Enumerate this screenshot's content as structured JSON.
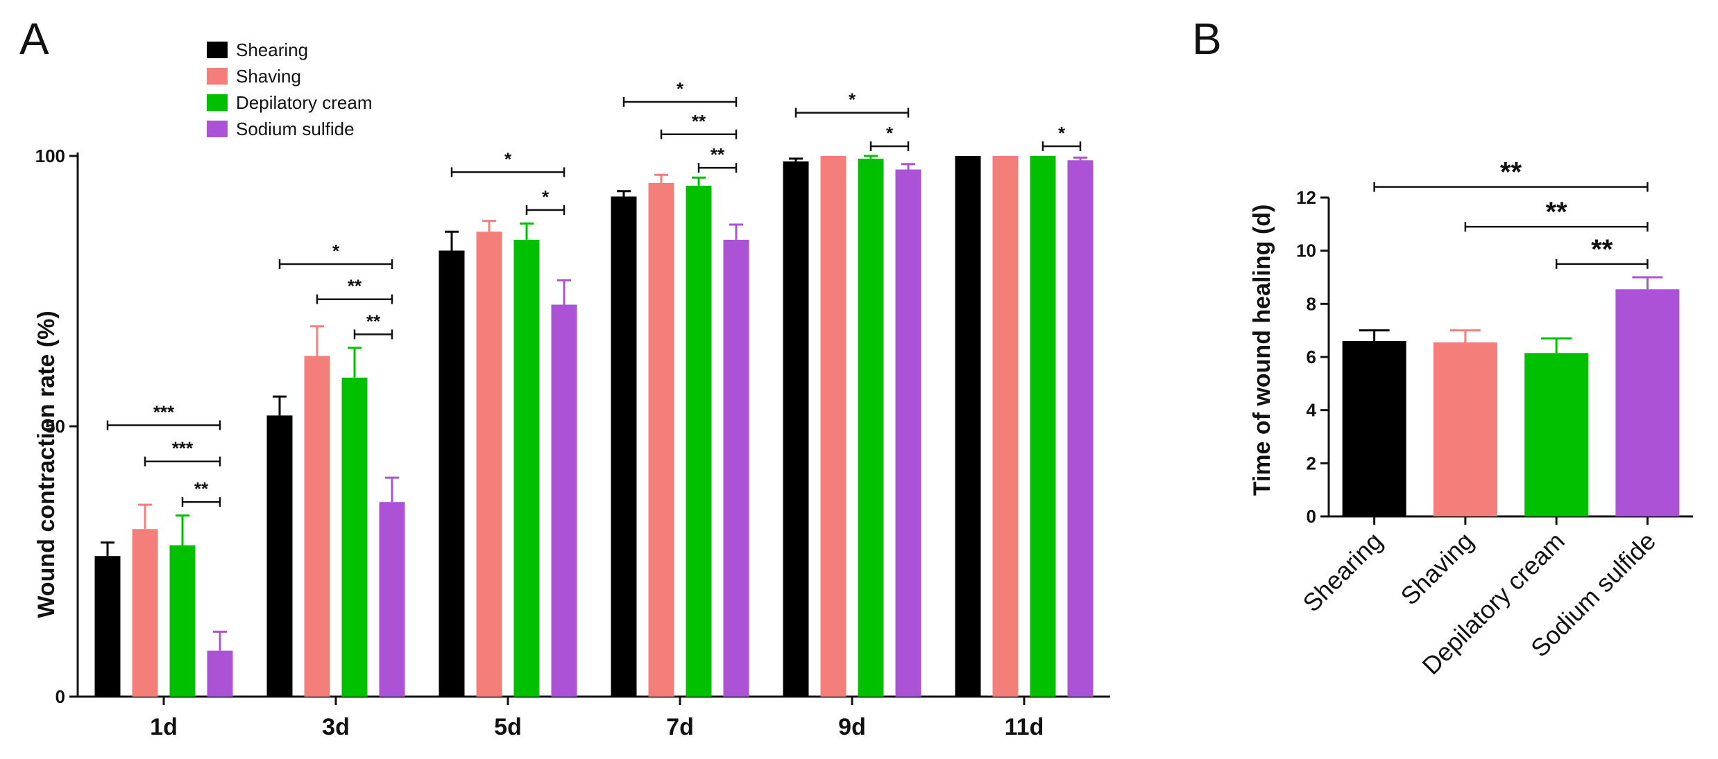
{
  "panels": {
    "a_label": "A",
    "b_label": "B"
  },
  "chart_data": [
    {
      "type": "bar",
      "panel": "A",
      "title": "",
      "xlabel": "",
      "ylabel": "Wound contraction rate (%)",
      "ylim": [
        0,
        100
      ],
      "yticks": [
        0,
        50,
        100
      ],
      "categories": [
        "1d",
        "3d",
        "5d",
        "7d",
        "9d",
        "11d"
      ],
      "legend": {
        "placement": "top-left"
      },
      "series": [
        {
          "name": "Shearing",
          "color": "#000000",
          "values": [
            26,
            52,
            82.5,
            92.5,
            99,
            100
          ],
          "errors": [
            2.5,
            3.5,
            3.5,
            1,
            0.5,
            0
          ]
        },
        {
          "name": "Shaving",
          "color": "#f47f7a",
          "values": [
            31,
            63,
            86,
            95,
            100,
            100
          ],
          "errors": [
            4.5,
            5.5,
            2,
            1.5,
            0,
            0
          ]
        },
        {
          "name": "Depilatory cream",
          "color": "#00c000",
          "values": [
            28,
            59,
            84.5,
            94.5,
            99.5,
            100
          ],
          "errors": [
            5.5,
            5.5,
            3,
            1.5,
            0.5,
            0
          ]
        },
        {
          "name": "Sodium sulfide",
          "color": "#ab52d6",
          "values": [
            8.5,
            36,
            72.5,
            84.5,
            97.5,
            99.2
          ],
          "errors": [
            3.5,
            4.5,
            4.5,
            2.8,
            1,
            0.5
          ]
        }
      ],
      "significance": [
        {
          "category": "1d",
          "from": 0,
          "to": 3,
          "y": 50.2,
          "label": "***"
        },
        {
          "category": "1d",
          "from": 1,
          "to": 3,
          "y": 43.5,
          "label": "***"
        },
        {
          "category": "1d",
          "from": 2,
          "to": 3,
          "y": 36,
          "label": "**"
        },
        {
          "category": "3d",
          "from": 0,
          "to": 3,
          "y": 80,
          "label": "*"
        },
        {
          "category": "3d",
          "from": 1,
          "to": 3,
          "y": 73.5,
          "label": "**"
        },
        {
          "category": "3d",
          "from": 2,
          "to": 3,
          "y": 67,
          "label": "**"
        },
        {
          "category": "5d",
          "from": 0,
          "to": 3,
          "y": 97,
          "label": "*"
        },
        {
          "category": "5d",
          "from": 2,
          "to": 3,
          "y": 90,
          "label": "*"
        },
        {
          "category": "7d",
          "from": 0,
          "to": 3,
          "y": 110,
          "label": "*"
        },
        {
          "category": "7d",
          "from": 1,
          "to": 3,
          "y": 104,
          "label": "**"
        },
        {
          "category": "7d",
          "from": 2,
          "to": 3,
          "y": 97.8,
          "label": "**"
        },
        {
          "category": "9d",
          "from": 0,
          "to": 3,
          "y": 108,
          "label": "*"
        },
        {
          "category": "9d",
          "from": 2,
          "to": 3,
          "y": 101.8,
          "label": "*"
        },
        {
          "category": "11d",
          "from": 2,
          "to": 3,
          "y": 101.8,
          "label": "*"
        }
      ]
    },
    {
      "type": "bar",
      "panel": "B",
      "title": "",
      "xlabel": "",
      "ylabel": "Time of wound healing (d)",
      "ylim": [
        0,
        12
      ],
      "yticks": [
        0,
        2,
        4,
        6,
        8,
        10,
        12
      ],
      "categories": [
        "Shearing",
        "Shaving",
        "Depilatory cream",
        "Sodium sulfide"
      ],
      "colors": [
        "#000000",
        "#f47f7a",
        "#00c000",
        "#ab52d6"
      ],
      "values": [
        6.6,
        6.55,
        6.15,
        8.55
      ],
      "errors": [
        0.4,
        0.45,
        0.55,
        0.45
      ],
      "significance": [
        {
          "from": 0,
          "to": 3,
          "y": 12.4,
          "label": "**"
        },
        {
          "from": 1,
          "to": 3,
          "y": 10.9,
          "label": "**"
        },
        {
          "from": 2,
          "to": 3,
          "y": 9.5,
          "label": "**"
        }
      ]
    }
  ]
}
